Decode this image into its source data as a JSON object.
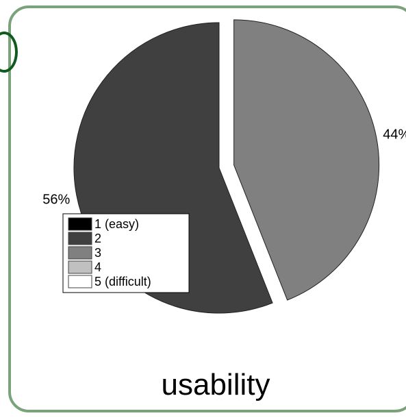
{
  "chart_data": {
    "type": "pie",
    "title": "usability",
    "slices": [
      {
        "label": "1 (easy)",
        "value": 0,
        "color": "#000000"
      },
      {
        "label": "2",
        "value": 56,
        "color": "#404040",
        "data_label": "56%"
      },
      {
        "label": "3",
        "value": 44,
        "color": "#808080",
        "data_label": "44%"
      },
      {
        "label": "4",
        "value": 0,
        "color": "#c0c0c0"
      },
      {
        "label": "5 (difficult)",
        "value": 0,
        "color": "#ffffff"
      }
    ],
    "legend": {
      "position": "bottom-left",
      "entries": [
        "1 (easy)",
        "2",
        "3",
        "4",
        "5 (difficult)"
      ]
    },
    "exploded_slice": "3"
  },
  "colors": {
    "frame_border": "#7aa37c",
    "corner_mark": "#0f5a1e",
    "slice_edge": "#202020"
  }
}
